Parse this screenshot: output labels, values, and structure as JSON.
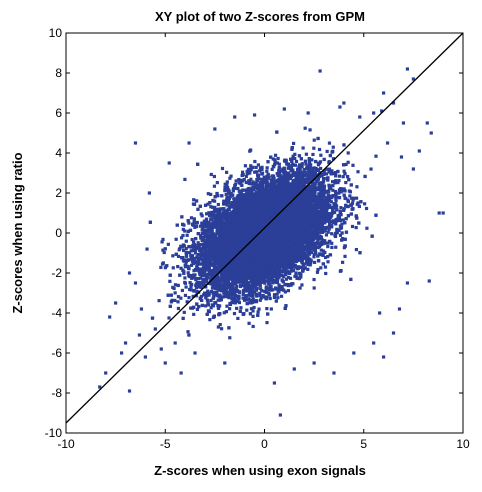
{
  "chart_data": {
    "type": "scatter",
    "title": "XY plot of two Z-scores from GPM",
    "xlabel": "Z-scores when using exon signals",
    "ylabel": "Z-scores when using ratio",
    "xlim": [
      -10,
      10
    ],
    "ylim": [
      -10,
      10
    ],
    "xticks": [
      -10,
      -5,
      0,
      5,
      10
    ],
    "yticks": [
      -10,
      -8,
      -6,
      -4,
      -2,
      0,
      2,
      4,
      6,
      8,
      10
    ],
    "grid": false,
    "marker_color": "#2b3f99",
    "line_color": "#000000",
    "reference_line": {
      "x": [
        -10,
        10
      ],
      "y": [
        -9.5,
        10.1
      ]
    },
    "bulk": {
      "description_free": true,
      "center": [
        0,
        0
      ],
      "sigma_x": 1.7,
      "sigma_y": 1.5,
      "correlation": 0.45,
      "extent_x": [
        -6,
        6
      ],
      "extent_y": [
        -5.5,
        5.5
      ]
    },
    "points": [
      [
        -6.5,
        4.5
      ],
      [
        -7.5,
        -3.5
      ],
      [
        -7.0,
        -5.5
      ],
      [
        -8.3,
        -7.7
      ],
      [
        -6.8,
        -7.9
      ],
      [
        -5.2,
        -5.8
      ],
      [
        -6.0,
        -6.2
      ],
      [
        -5.5,
        -4.8
      ],
      [
        -6.2,
        -3.8
      ],
      [
        -4.8,
        3.5
      ],
      [
        -5.8,
        2.0
      ],
      [
        -6.5,
        -2.5
      ],
      [
        -5.0,
        -6.5
      ],
      [
        -4.2,
        -7.0
      ],
      [
        -3.8,
        4.5
      ],
      [
        -2.5,
        5.2
      ],
      [
        -1.5,
        5.8
      ],
      [
        0.8,
        -9.1
      ],
      [
        0.5,
        -7.5
      ],
      [
        1.5,
        -6.8
      ],
      [
        2.5,
        -6.5
      ],
      [
        3.5,
        -7.0
      ],
      [
        4.5,
        -6.0
      ],
      [
        5.5,
        -5.5
      ],
      [
        6.0,
        -6.2
      ],
      [
        6.5,
        -5.0
      ],
      [
        5.8,
        -4.0
      ],
      [
        6.8,
        -3.8
      ],
      [
        7.2,
        -2.5
      ],
      [
        8.3,
        -2.4
      ],
      [
        6.9,
        3.8
      ],
      [
        7.5,
        3.2
      ],
      [
        8.2,
        5.5
      ],
      [
        8.4,
        5.0
      ],
      [
        8.8,
        1.0
      ],
      [
        9.0,
        1.0
      ],
      [
        7.0,
        5.5
      ],
      [
        7.5,
        7.7
      ],
      [
        7.2,
        8.2
      ],
      [
        6.5,
        6.5
      ],
      [
        5.5,
        6.0
      ],
      [
        4.0,
        6.5
      ],
      [
        3.8,
        6.3
      ],
      [
        5.9,
        6.1
      ],
      [
        2.8,
        8.1
      ],
      [
        2.2,
        6.0
      ],
      [
        1.0,
        6.2
      ],
      [
        -0.5,
        5.9
      ],
      [
        6.0,
        7.0
      ],
      [
        4.8,
        5.8
      ],
      [
        -7.2,
        -6.0
      ],
      [
        -8.0,
        -7.0
      ],
      [
        -6.3,
        -5.1
      ],
      [
        -7.8,
        -4.2
      ],
      [
        -6.8,
        -2.0
      ],
      [
        -4.5,
        -5.5
      ],
      [
        -3.5,
        -6.0
      ],
      [
        -2.0,
        -6.5
      ],
      [
        6.2,
        4.5
      ],
      [
        7.8,
        4.1
      ]
    ]
  }
}
